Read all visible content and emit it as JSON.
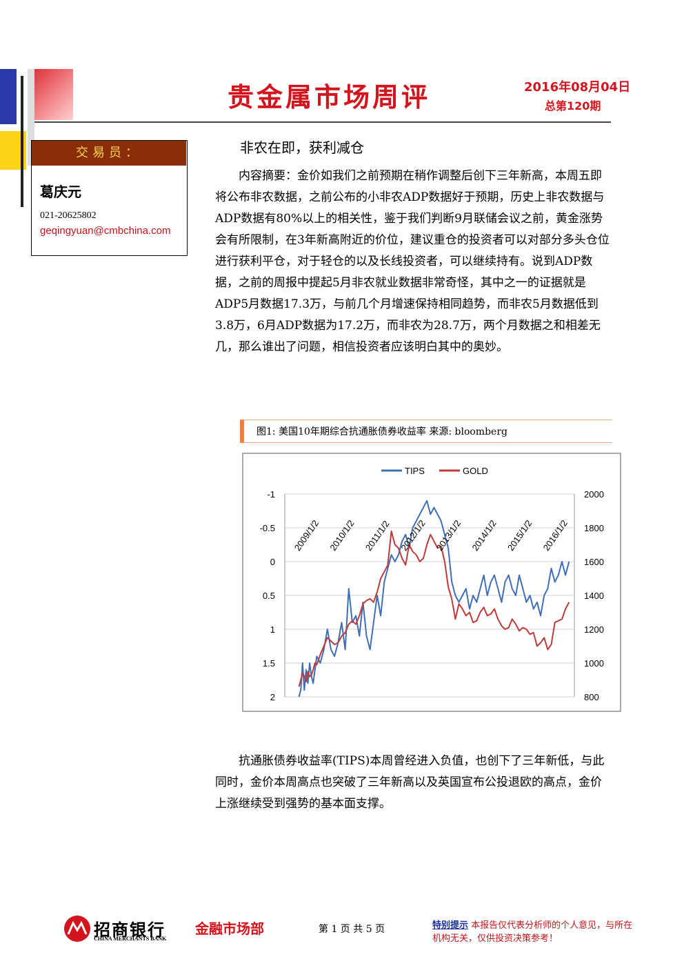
{
  "header": {
    "title": "贵金属市场周评",
    "date": "2016年08月04日",
    "issue": "总第120期"
  },
  "trader": {
    "label": "交易员：",
    "name": "葛庆元",
    "phone": "021-20625802",
    "email": "geqingyuan@cmbchina.com"
  },
  "article": {
    "subtitle": "非农在即，获利减仓",
    "summary": "内容摘要：金价如我们之前预期在稍作调整后创下三年新高，本周五即将公布非农数据，之前公布的小非农ADP数据好于预期，历史上非农数据与ADP数据有80%以上的相关性，鉴于我们判断9月联储会议之前，黄金涨势会有所限制，在3年新高附近的价位，建议重仓的投资者可以对部分多头仓位进行获利平仓，对于轻仓的以及长线投资者，可以继续持有。说到ADP数据，之前的周报中提起5月非农就业数据非常奇怪，其中之一的证据就是ADP5月数据17.3万，与前几个月增速保持相同趋势，而非农5月数据低到3.8万，6月ADP数据为17.2万，而非农为28.7万，两个月数据之和相差无几，那么谁出了问题，相信投资者应该明白其中的奥妙。",
    "body2": "抗通胀债券收益率(TIPS)本周曾经进入负值，也创下了三年新低，与此同时，金价本周高点也突破了三年新高以及英国宣布公投退欧的高点，金价上涨继续受到强势的基本面支撑。"
  },
  "figure": {
    "caption": "图1:  美国10年期综合抗通胀债券收益率    来源:  bloomberg"
  },
  "chart_data": {
    "type": "line",
    "legend_position": "top",
    "x_tick_labels": [
      "2009/1/2",
      "2010/1/2",
      "2011/1/2",
      "2012/1/2",
      "2013/1/2",
      "2014/1/2",
      "2015/1/2",
      "2016/1/2"
    ],
    "y_left": {
      "ticks": [
        "-1",
        "-0.5",
        "0",
        "0.5",
        "1",
        "1.5",
        "2"
      ],
      "range": [
        2,
        -1
      ],
      "reversed": true
    },
    "y_right": {
      "ticks": [
        "2000",
        "1800",
        "1600",
        "1400",
        "1200",
        "1000",
        "800"
      ],
      "range": [
        800,
        2000
      ]
    },
    "grid": true,
    "series": [
      {
        "name": "TIPS",
        "color": "#3e6fb4",
        "axis": "left",
        "x": [
          2009.0,
          2009.05,
          2009.1,
          2009.15,
          2009.2,
          2009.25,
          2009.3,
          2009.35,
          2009.4,
          2009.45,
          2009.5,
          2009.6,
          2009.7,
          2009.8,
          2009.9,
          2010.0,
          2010.1,
          2010.2,
          2010.3,
          2010.4,
          2010.5,
          2010.6,
          2010.7,
          2010.8,
          2010.9,
          2011.0,
          2011.1,
          2011.2,
          2011.3,
          2011.4,
          2011.5,
          2011.6,
          2011.7,
          2011.8,
          2011.9,
          2012.0,
          2012.1,
          2012.2,
          2012.3,
          2012.4,
          2012.5,
          2012.6,
          2012.7,
          2012.8,
          2012.9,
          2013.0,
          2013.1,
          2013.2,
          2013.3,
          2013.4,
          2013.5,
          2013.6,
          2013.7,
          2013.8,
          2013.9,
          2014.0,
          2014.1,
          2014.2,
          2014.3,
          2014.4,
          2014.5,
          2014.6,
          2014.7,
          2014.8,
          2014.9,
          2015.0,
          2015.1,
          2015.2,
          2015.3,
          2015.4,
          2015.5,
          2015.6,
          2015.7,
          2015.8,
          2015.9,
          2016.0,
          2016.1,
          2016.2,
          2016.3,
          2016.4,
          2016.5,
          2016.6
        ],
        "values": [
          2.0,
          1.9,
          1.5,
          1.9,
          1.6,
          1.8,
          1.5,
          1.7,
          1.8,
          1.6,
          1.4,
          1.5,
          1.3,
          1.0,
          1.3,
          1.4,
          1.2,
          0.9,
          1.3,
          0.4,
          0.9,
          0.8,
          1.1,
          0.6,
          1.1,
          1.3,
          0.9,
          0.5,
          0.8,
          0.3,
          0.1,
          -0.1,
          0.0,
          -0.1,
          -0.3,
          -0.4,
          -0.2,
          -0.5,
          -0.6,
          -0.7,
          -0.8,
          -0.9,
          -0.7,
          -0.8,
          -0.7,
          -0.6,
          -0.4,
          -0.2,
          0.3,
          0.5,
          0.6,
          0.5,
          0.4,
          0.7,
          0.5,
          0.6,
          0.4,
          0.2,
          0.5,
          0.3,
          0.2,
          0.4,
          0.6,
          0.3,
          0.2,
          0.4,
          0.5,
          0.2,
          0.4,
          0.6,
          0.5,
          0.7,
          0.6,
          0.8,
          0.5,
          0.4,
          0.1,
          0.3,
          0.2,
          0.0,
          0.2,
          0.0
        ]
      },
      {
        "name": "GOLD",
        "color": "#c0393a",
        "axis": "right",
        "x": [
          2009.0,
          2009.05,
          2009.1,
          2009.15,
          2009.2,
          2009.25,
          2009.3,
          2009.35,
          2009.4,
          2009.45,
          2009.5,
          2009.6,
          2009.7,
          2009.8,
          2009.9,
          2010.0,
          2010.1,
          2010.2,
          2010.3,
          2010.4,
          2010.5,
          2010.6,
          2010.7,
          2010.8,
          2010.9,
          2011.0,
          2011.1,
          2011.2,
          2011.3,
          2011.4,
          2011.5,
          2011.6,
          2011.7,
          2011.8,
          2011.9,
          2012.0,
          2012.1,
          2012.2,
          2012.3,
          2012.4,
          2012.5,
          2012.6,
          2012.7,
          2012.8,
          2012.9,
          2013.0,
          2013.1,
          2013.2,
          2013.3,
          2013.4,
          2013.5,
          2013.6,
          2013.7,
          2013.8,
          2013.9,
          2014.0,
          2014.1,
          2014.2,
          2014.3,
          2014.4,
          2014.5,
          2014.6,
          2014.7,
          2014.8,
          2014.9,
          2015.0,
          2015.1,
          2015.2,
          2015.3,
          2015.4,
          2015.5,
          2015.6,
          2015.7,
          2015.8,
          2015.9,
          2016.0,
          2016.1,
          2016.2,
          2016.3,
          2016.4,
          2016.5,
          2016.6
        ],
        "values": [
          860,
          900,
          940,
          920,
          890,
          950,
          920,
          930,
          960,
          1000,
          990,
          1050,
          1100,
          1150,
          1130,
          1110,
          1120,
          1160,
          1180,
          1230,
          1250,
          1230,
          1280,
          1350,
          1370,
          1380,
          1360,
          1420,
          1500,
          1540,
          1580,
          1780,
          1700,
          1680,
          1620,
          1580,
          1700,
          1660,
          1640,
          1600,
          1620,
          1700,
          1760,
          1720,
          1680,
          1690,
          1600,
          1450,
          1380,
          1260,
          1350,
          1320,
          1280,
          1300,
          1240,
          1250,
          1300,
          1330,
          1280,
          1290,
          1320,
          1260,
          1220,
          1200,
          1210,
          1260,
          1230,
          1190,
          1210,
          1200,
          1170,
          1180,
          1100,
          1120,
          1150,
          1080,
          1110,
          1240,
          1250,
          1260,
          1320,
          1360
        ]
      }
    ]
  },
  "footer": {
    "bank_name": "招商银行",
    "bank_name_en": "CHINA MERCHANTS BANK",
    "dept": "金融市场部",
    "page": "第 1 页 共 5 页",
    "note_label": "特别提示",
    "note_text": "本报告仅代表分析师的个人意见，与所在机构无关，仅供投资决策参考！"
  },
  "colors": {
    "brand_red": "#d4141c",
    "header_block_blue": "#2b3aa8",
    "header_block_yellow": "#ffd21a",
    "trader_bar": "#8a2e0a",
    "tips_line": "#3e6fb4",
    "gold_line": "#c0393a"
  }
}
